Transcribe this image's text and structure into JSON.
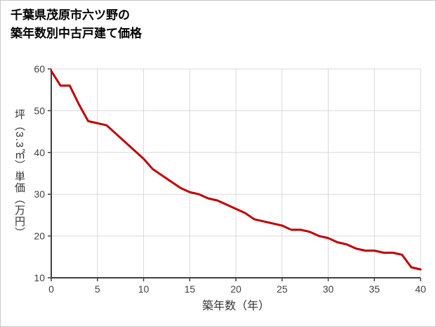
{
  "title": {
    "line1": "千葉県茂原市六ツ野の",
    "line2": "築年数別中古戸建て価格"
  },
  "colors": {
    "line": "#c00000",
    "grid": "#d9d9d9",
    "axis": "#404040",
    "tick_text": "#404040",
    "title_text": "#000000"
  },
  "chart_data": {
    "type": "line",
    "title": "千葉県茂原市六ツ野の築年数別中古戸建て価格",
    "xlabel": "築年数（年）",
    "ylabel": "坪（3.3㎡）単価（万円）",
    "xlim": [
      0,
      40
    ],
    "ylim": [
      10,
      60
    ],
    "x_ticks": [
      0,
      5,
      10,
      15,
      20,
      25,
      30,
      35,
      40
    ],
    "y_ticks": [
      10,
      20,
      30,
      40,
      50,
      60
    ],
    "grid": true,
    "legend": "none",
    "x": [
      0,
      1,
      2,
      3,
      4,
      5,
      6,
      7,
      8,
      9,
      10,
      11,
      12,
      13,
      14,
      15,
      16,
      17,
      18,
      19,
      20,
      21,
      22,
      23,
      24,
      25,
      26,
      27,
      28,
      29,
      30,
      31,
      32,
      33,
      34,
      35,
      36,
      37,
      38,
      39,
      40
    ],
    "series": [
      {
        "name": "坪単価（万円）",
        "color": "#c00000",
        "values": [
          59.5,
          56,
          56,
          51.5,
          47.5,
          47,
          46.5,
          44.5,
          42.5,
          40.5,
          38.5,
          36,
          34.5,
          33,
          31.5,
          30.5,
          30,
          29,
          28.5,
          27.5,
          26.5,
          25.5,
          24,
          23.5,
          23,
          22.5,
          21.5,
          21.5,
          21,
          20,
          19.5,
          18.5,
          18,
          17,
          16.5,
          16.5,
          16,
          16,
          15.5,
          12.5,
          12
        ]
      }
    ]
  }
}
